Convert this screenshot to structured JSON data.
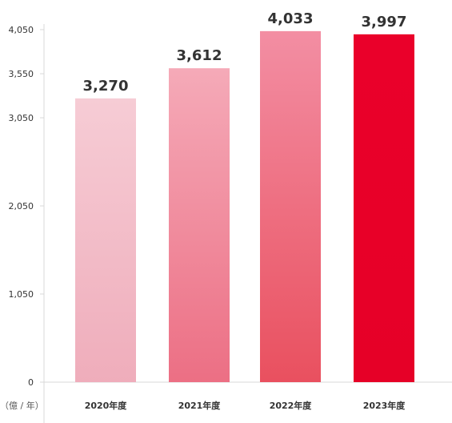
{
  "chart_data": {
    "type": "bar",
    "categories": [
      "2020年度",
      "2021年度",
      "2022年度",
      "2023年度"
    ],
    "values": [
      3270,
      3612,
      4033,
      3997
    ],
    "value_labels": [
      "3,270",
      "3,612",
      "4,033",
      "3,997"
    ],
    "y_ticks": [
      0,
      1050,
      2050,
      3050,
      3550,
      4050
    ],
    "y_tick_labels": [
      "0",
      "1,050",
      "2,050",
      "3,050",
      "3,550",
      "4,050"
    ],
    "ylim": [
      0,
      4050
    ],
    "y_scale": "piecewise-linear (0–3,050 and 3,050–4,050 use different spacing)",
    "y_unit_label": "（億 / 年）",
    "grid": false,
    "legend": "none",
    "bar_colors": [
      {
        "top": "#f6ccd5",
        "bottom": "#efadbb"
      },
      {
        "top": "#f5aab8",
        "bottom": "#ec6f84"
      },
      {
        "top": "#f38ea3",
        "bottom": "#e9505f"
      },
      {
        "top": "#ea002a",
        "bottom": "#e60027"
      }
    ],
    "text_color": "#333333",
    "axis_color": "#d8d8d8"
  }
}
